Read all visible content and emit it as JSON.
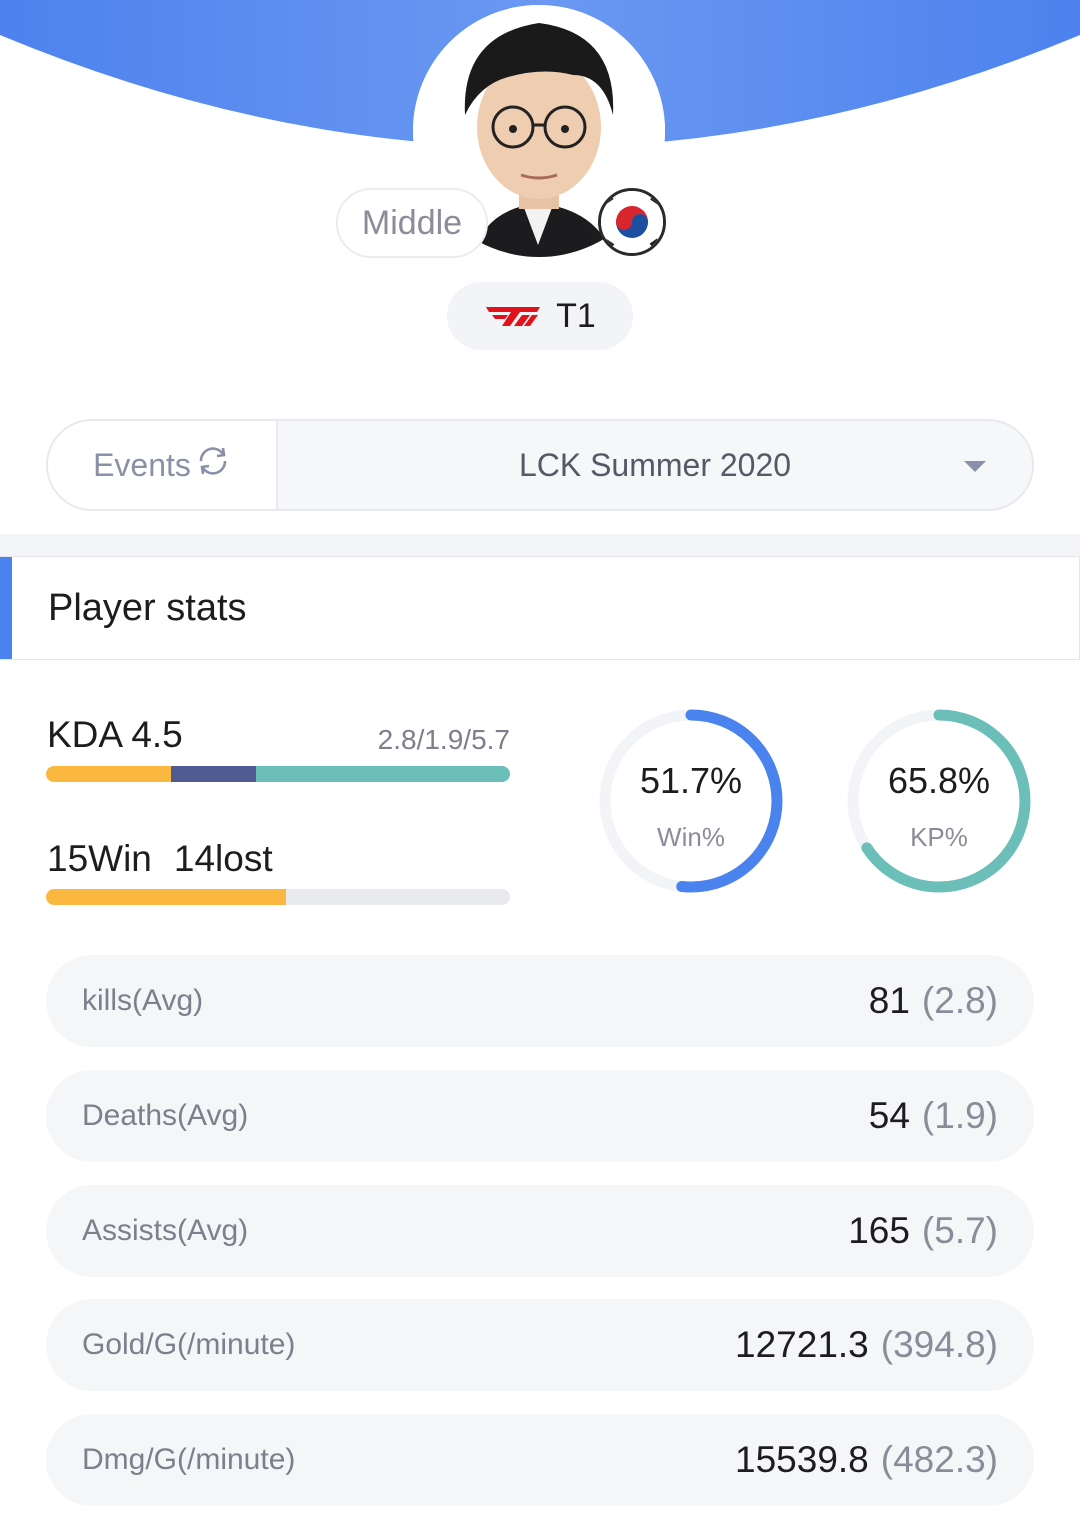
{
  "player": {
    "role": "Middle",
    "team": "T1"
  },
  "events": {
    "tab_label": "Events",
    "selected": "LCK Summer 2020"
  },
  "section_title": "Player stats",
  "kda": {
    "title": "KDA 4.5",
    "detail": "2.8/1.9/5.7",
    "kills_avg": 2.8,
    "deaths_avg": 1.9,
    "assists_avg": 5.7
  },
  "record": {
    "wins_text": "15Win",
    "losses_text": "14lost",
    "wins": 15,
    "losses": 14
  },
  "rings": [
    {
      "value": "51.7%",
      "label": "Win%",
      "fraction": 0.517,
      "color": "#4a82ee"
    },
    {
      "value": "65.8%",
      "label": "KP%",
      "fraction": 0.658,
      "color": "#6bbfb8"
    }
  ],
  "stats": [
    {
      "label": "kills(Avg)",
      "total": "81",
      "avg": "(2.8)"
    },
    {
      "label": "Deaths(Avg)",
      "total": "54",
      "avg": "(1.9)"
    },
    {
      "label": "Assists(Avg)",
      "total": "165",
      "avg": "(5.7)"
    },
    {
      "label": "Gold/G(/minute)",
      "total": "12721.3",
      "avg": "(394.8)"
    },
    {
      "label": "Dmg/G(/minute)",
      "total": "15539.8",
      "avg": "(482.3)"
    }
  ],
  "colors": {
    "accent": "#4a82ee",
    "kills": "#fbb840",
    "deaths": "#4f5b92",
    "assists": "#6bbfb8",
    "team_logo": "#e1121b"
  },
  "icons": {
    "refresh": "refresh-icon",
    "dropdown": "caret-down-icon",
    "flag": "south-korea-flag-icon",
    "team_logo": "t1-logo-icon"
  }
}
